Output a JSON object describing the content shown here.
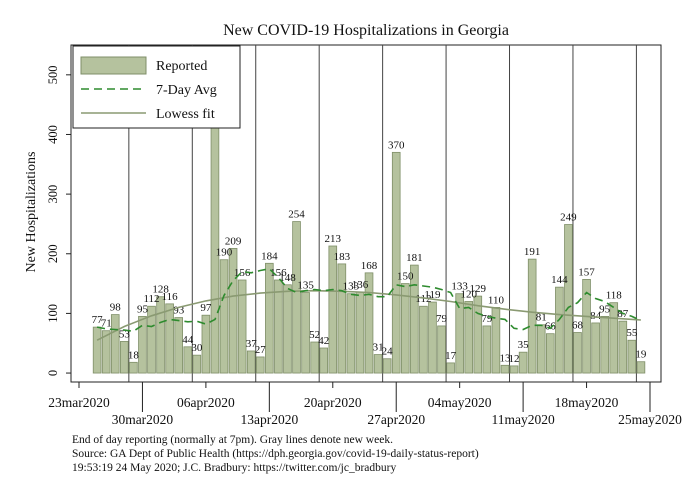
{
  "chart_data": {
    "type": "bar",
    "title": "New COVID-19 Hospitalizations in Georgia",
    "ylabel": "New Hospitalizations",
    "xlabel": "",
    "ylim": [
      -15,
      550
    ],
    "yticks": [
      0,
      100,
      200,
      300,
      400,
      500
    ],
    "x_start_day": 0,
    "x_end_day": 63,
    "xticks": [
      {
        "day": 0,
        "label": "23mar2020",
        "row": 1
      },
      {
        "day": 7,
        "label": "30mar2020",
        "row": 2
      },
      {
        "day": 14,
        "label": "06apr2020",
        "row": 1
      },
      {
        "day": 21,
        "label": "13apr2020",
        "row": 2
      },
      {
        "day": 28,
        "label": "20apr2020",
        "row": 1
      },
      {
        "day": 35,
        "label": "27apr2020",
        "row": 2
      },
      {
        "day": 42,
        "label": "04may2020",
        "row": 1
      },
      {
        "day": 49,
        "label": "11may2020",
        "row": 2
      },
      {
        "day": 56,
        "label": "18may2020",
        "row": 1
      },
      {
        "day": 63,
        "label": "25may2020",
        "row": 2
      }
    ],
    "week_lines_days": [
      5.5,
      12.5,
      19.5,
      26.5,
      33.5,
      40.5,
      47.5,
      54.5,
      61.5
    ],
    "reported": [
      {
        "day": 2,
        "value": 77,
        "label": "77"
      },
      {
        "day": 3,
        "value": 71,
        "label": "71"
      },
      {
        "day": 4,
        "value": 98,
        "label": "98"
      },
      {
        "day": 5,
        "value": 53,
        "label": "53"
      },
      {
        "day": 6,
        "value": 18,
        "label": "18"
      },
      {
        "day": 7,
        "value": 95,
        "label": "95"
      },
      {
        "day": 8,
        "value": 112,
        "label": "112"
      },
      {
        "day": 9,
        "value": 128,
        "label": "128"
      },
      {
        "day": 10,
        "value": 116,
        "label": "116"
      },
      {
        "day": 11,
        "value": 93,
        "label": "93"
      },
      {
        "day": 12,
        "value": 44,
        "label": "44"
      },
      {
        "day": 13,
        "value": 30,
        "label": "30"
      },
      {
        "day": 14,
        "value": 97,
        "label": "97"
      },
      {
        "day": 15,
        "value": 415,
        "label": ""
      },
      {
        "day": 16,
        "value": 190,
        "label": "190"
      },
      {
        "day": 17,
        "value": 209,
        "label": "209"
      },
      {
        "day": 18,
        "value": 156,
        "label": "156"
      },
      {
        "day": 19,
        "value": 37,
        "label": "37"
      },
      {
        "day": 20,
        "value": 27,
        "label": "27"
      },
      {
        "day": 21,
        "value": 184,
        "label": "184"
      },
      {
        "day": 22,
        "value": 156,
        "label": "156"
      },
      {
        "day": 23,
        "value": 148,
        "label": "148"
      },
      {
        "day": 24,
        "value": 254,
        "label": "254"
      },
      {
        "day": 25,
        "value": 135,
        "label": "135"
      },
      {
        "day": 26,
        "value": 52,
        "label": "52"
      },
      {
        "day": 27,
        "value": 42,
        "label": "42"
      },
      {
        "day": 28,
        "value": 213,
        "label": "213"
      },
      {
        "day": 29,
        "value": 183,
        "label": "183"
      },
      {
        "day": 30,
        "value": 133,
        "label": "133"
      },
      {
        "day": 31,
        "value": 136,
        "label": "136"
      },
      {
        "day": 32,
        "value": 168,
        "label": "168"
      },
      {
        "day": 33,
        "value": 31,
        "label": "31"
      },
      {
        "day": 34,
        "value": 24,
        "label": "24"
      },
      {
        "day": 35,
        "value": 370,
        "label": "370"
      },
      {
        "day": 36,
        "value": 150,
        "label": "150"
      },
      {
        "day": 37,
        "value": 181,
        "label": "181"
      },
      {
        "day": 38,
        "value": 112,
        "label": "112"
      },
      {
        "day": 39,
        "value": 119,
        "label": "119"
      },
      {
        "day": 40,
        "value": 79,
        "label": "79"
      },
      {
        "day": 41,
        "value": 17,
        "label": "17"
      },
      {
        "day": 42,
        "value": 133,
        "label": "133"
      },
      {
        "day": 43,
        "value": 120,
        "label": "120"
      },
      {
        "day": 44,
        "value": 129,
        "label": "129"
      },
      {
        "day": 45,
        "value": 79,
        "label": "79"
      },
      {
        "day": 46,
        "value": 110,
        "label": "110"
      },
      {
        "day": 47,
        "value": 13,
        "label": "13"
      },
      {
        "day": 48,
        "value": 12,
        "label": "12"
      },
      {
        "day": 49,
        "value": 35,
        "label": "35"
      },
      {
        "day": 50,
        "value": 191,
        "label": "191"
      },
      {
        "day": 51,
        "value": 81,
        "label": "81"
      },
      {
        "day": 52,
        "value": 66,
        "label": "66"
      },
      {
        "day": 53,
        "value": 144,
        "label": "144"
      },
      {
        "day": 54,
        "value": 249,
        "label": "249"
      },
      {
        "day": 55,
        "value": 68,
        "label": "68"
      },
      {
        "day": 56,
        "value": 157,
        "label": "157"
      },
      {
        "day": 57,
        "value": 84,
        "label": "84"
      },
      {
        "day": 58,
        "value": 95,
        "label": "95"
      },
      {
        "day": 59,
        "value": 118,
        "label": "118"
      },
      {
        "day": 60,
        "value": 87,
        "label": "87"
      },
      {
        "day": 61,
        "value": 55,
        "label": "55"
      },
      {
        "day": 62,
        "value": 19,
        "label": "19"
      }
    ],
    "seven_day_avg": [
      {
        "day": 2,
        "value": 77
      },
      {
        "day": 3,
        "value": 74
      },
      {
        "day": 4,
        "value": 73
      },
      {
        "day": 5,
        "value": 72
      },
      {
        "day": 6,
        "value": 70
      },
      {
        "day": 7,
        "value": 80
      },
      {
        "day": 8,
        "value": 78
      },
      {
        "day": 9,
        "value": 85
      },
      {
        "day": 10,
        "value": 90
      },
      {
        "day": 11,
        "value": 88
      },
      {
        "day": 12,
        "value": 86
      },
      {
        "day": 13,
        "value": 87
      },
      {
        "day": 14,
        "value": 82
      },
      {
        "day": 15,
        "value": 90
      },
      {
        "day": 16,
        "value": 130
      },
      {
        "day": 17,
        "value": 155
      },
      {
        "day": 18,
        "value": 170
      },
      {
        "day": 19,
        "value": 168
      },
      {
        "day": 20,
        "value": 172
      },
      {
        "day": 21,
        "value": 175
      },
      {
        "day": 22,
        "value": 160
      },
      {
        "day": 23,
        "value": 142
      },
      {
        "day": 24,
        "value": 135
      },
      {
        "day": 25,
        "value": 138
      },
      {
        "day": 26,
        "value": 140
      },
      {
        "day": 27,
        "value": 138
      },
      {
        "day": 28,
        "value": 140
      },
      {
        "day": 29,
        "value": 138
      },
      {
        "day": 30,
        "value": 132
      },
      {
        "day": 31,
        "value": 130
      },
      {
        "day": 32,
        "value": 132
      },
      {
        "day": 33,
        "value": 128
      },
      {
        "day": 34,
        "value": 128
      },
      {
        "day": 35,
        "value": 148
      },
      {
        "day": 36,
        "value": 145
      },
      {
        "day": 37,
        "value": 148
      },
      {
        "day": 38,
        "value": 146
      },
      {
        "day": 39,
        "value": 144
      },
      {
        "day": 40,
        "value": 140
      },
      {
        "day": 41,
        "value": 135
      },
      {
        "day": 42,
        "value": 108
      },
      {
        "day": 43,
        "value": 110
      },
      {
        "day": 44,
        "value": 100
      },
      {
        "day": 45,
        "value": 95
      },
      {
        "day": 46,
        "value": 92
      },
      {
        "day": 47,
        "value": 90
      },
      {
        "day": 48,
        "value": 75
      },
      {
        "day": 49,
        "value": 73
      },
      {
        "day": 50,
        "value": 80
      },
      {
        "day": 51,
        "value": 80
      },
      {
        "day": 52,
        "value": 75
      },
      {
        "day": 53,
        "value": 90
      },
      {
        "day": 54,
        "value": 110
      },
      {
        "day": 55,
        "value": 118
      },
      {
        "day": 56,
        "value": 135
      },
      {
        "day": 57,
        "value": 125
      },
      {
        "day": 58,
        "value": 120
      },
      {
        "day": 59,
        "value": 110
      },
      {
        "day": 60,
        "value": 100
      },
      {
        "day": 61,
        "value": 95
      },
      {
        "day": 62,
        "value": 88
      }
    ],
    "lowess_fit": [
      {
        "day": 2,
        "value": 55
      },
      {
        "day": 5,
        "value": 78
      },
      {
        "day": 8,
        "value": 96
      },
      {
        "day": 11,
        "value": 110
      },
      {
        "day": 14,
        "value": 121
      },
      {
        "day": 17,
        "value": 129
      },
      {
        "day": 20,
        "value": 134
      },
      {
        "day": 23,
        "value": 137
      },
      {
        "day": 26,
        "value": 138
      },
      {
        "day": 29,
        "value": 137
      },
      {
        "day": 32,
        "value": 135
      },
      {
        "day": 35,
        "value": 131
      },
      {
        "day": 38,
        "value": 126
      },
      {
        "day": 41,
        "value": 120
      },
      {
        "day": 44,
        "value": 113
      },
      {
        "day": 47,
        "value": 107
      },
      {
        "day": 50,
        "value": 102
      },
      {
        "day": 53,
        "value": 98
      },
      {
        "day": 56,
        "value": 95
      },
      {
        "day": 59,
        "value": 92
      },
      {
        "day": 62,
        "value": 89
      }
    ],
    "legend": [
      {
        "key": "reported",
        "label": "Reported"
      },
      {
        "key": "avg",
        "label": "7-Day Avg"
      },
      {
        "key": "lowess",
        "label": "Lowess fit"
      }
    ],
    "legend_position": "top-left",
    "colors": {
      "bar_fill": "#b5c29e",
      "bar_edge": "#7f8f68",
      "avg_line": "#2e8b2e",
      "lowess_line": "#8a9a72",
      "week_line": "#444444",
      "plot_bg": "#ffffff"
    }
  },
  "footer": {
    "line1": "End of day reporting (normally at 7pm). Gray lines denote new week.",
    "line2": "Source: GA Dept of Public Health (https://dph.georgia.gov/covid-19-daily-status-report)",
    "line3": "19:53:19  24 May 2020; J.C. Bradbury: https://twitter.com/jc_bradbury"
  }
}
